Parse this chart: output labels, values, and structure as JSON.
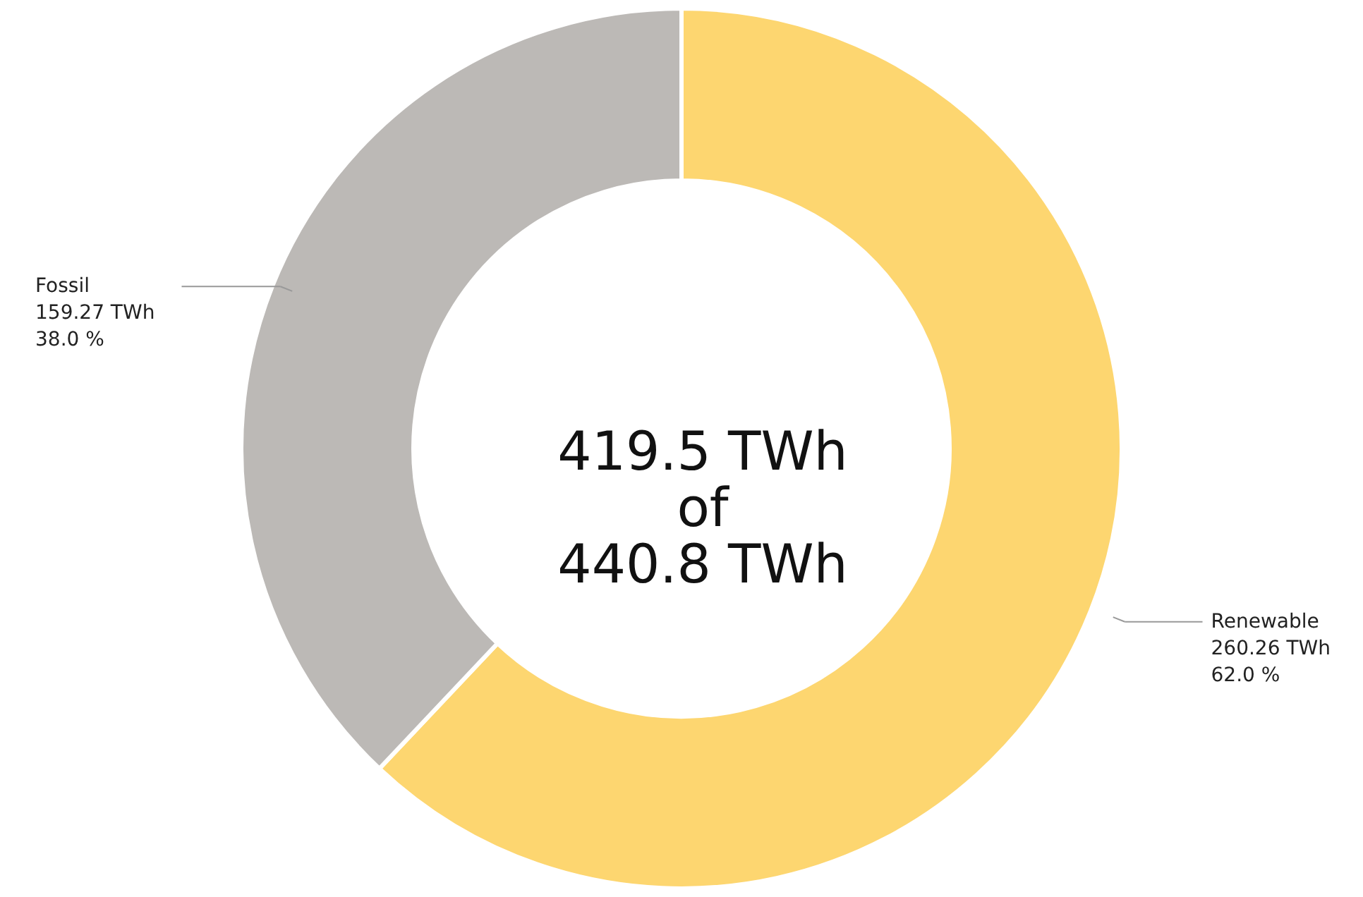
{
  "chart_data": {
    "type": "donut",
    "categories": [
      "Renewable",
      "Fossil"
    ],
    "values": [
      260.26,
      159.27
    ],
    "colors": [
      "#fdd670",
      "#bcb9b6"
    ],
    "value_labels": [
      "260.26 TWh\n62.0 %",
      "159.27 TWh\n38.0 %"
    ],
    "annotations": [
      "419.5 TWh\nof\n440.8 TWh"
    ]
  }
}
